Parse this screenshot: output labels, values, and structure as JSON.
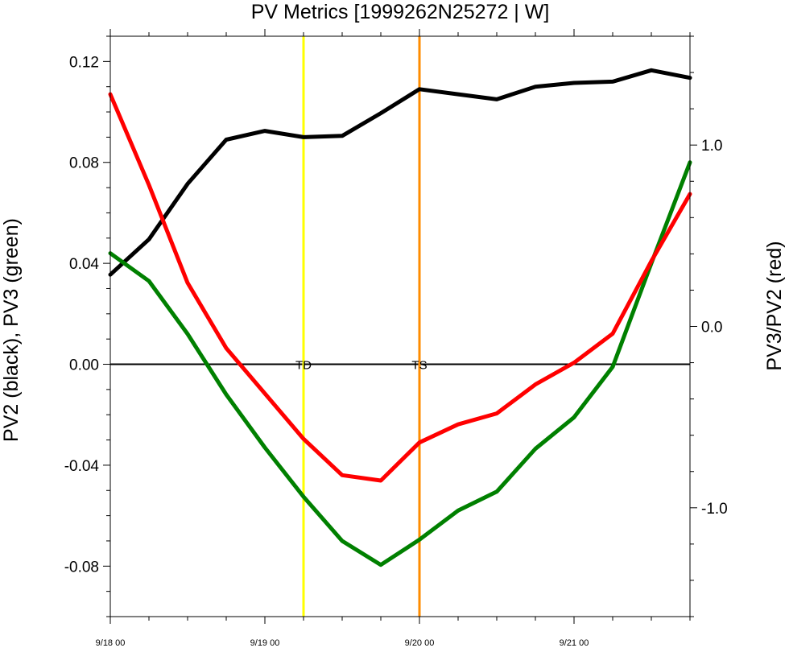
{
  "chart_data": {
    "type": "line",
    "title": "PV Metrics [1999262N25272 | W]",
    "ylabel_left": "PV2 (black), PV3 (green)",
    "ylabel_right": "PV3/PV2 (red)",
    "x_ticks": [
      "9/18 00",
      "9/19 00",
      "9/20 00",
      "9/21 00"
    ],
    "x_tick_positions": [
      0,
      4,
      8,
      12
    ],
    "xlim": [
      0,
      15
    ],
    "ylim_left": [
      -0.1,
      0.13
    ],
    "ylim_right": [
      -1.6,
      1.6
    ],
    "y_ticks_left": [
      0.12,
      0.08,
      0.04,
      0.0,
      -0.04,
      -0.08
    ],
    "y_tick_labels_left": [
      "0.12",
      "0.08",
      "0.04",
      "0.00",
      "-0.04",
      "-0.08"
    ],
    "y_ticks_right": [
      1.0,
      0.0,
      -1.0
    ],
    "y_tick_labels_right": [
      "1.0",
      "0.0",
      "-1.0"
    ],
    "zero_line": 0.0,
    "series": [
      {
        "axis": "left",
        "color": "#000000",
        "x": [
          0,
          1,
          2,
          3,
          4,
          5,
          6,
          7,
          8,
          9,
          10,
          11,
          12,
          13,
          14,
          15
        ],
        "values": [
          0.0355,
          0.0495,
          0.0715,
          0.089,
          0.0925,
          0.09,
          0.0905,
          0.0995,
          0.109,
          0.107,
          0.105,
          0.11,
          0.1115,
          0.112,
          0.1165,
          0.1135
        ]
      },
      {
        "axis": "left",
        "color": "#008000",
        "x": [
          0,
          1,
          2,
          3,
          4,
          5,
          6,
          7,
          8,
          9,
          10,
          11,
          12,
          13,
          14,
          15
        ],
        "values": [
          0.044,
          0.033,
          0.012,
          -0.012,
          -0.033,
          -0.0525,
          -0.07,
          -0.0795,
          -0.0695,
          -0.058,
          -0.0505,
          -0.0335,
          -0.021,
          -0.001,
          0.04,
          0.08
        ]
      },
      {
        "axis": "right",
        "color": "#ff0000",
        "x": [
          0,
          1,
          2,
          3,
          4,
          5,
          6,
          7,
          8,
          9,
          10,
          11,
          12,
          13,
          14,
          15
        ],
        "values": [
          1.28,
          0.78,
          0.24,
          -0.12,
          -0.37,
          -0.62,
          -0.82,
          -0.85,
          -0.64,
          -0.54,
          -0.48,
          -0.32,
          -0.2,
          -0.04,
          0.36,
          0.73
        ]
      }
    ],
    "vertical_markers": [
      {
        "x": 5,
        "label": "TD",
        "color": "#ffff00"
      },
      {
        "x": 8,
        "label": "TS",
        "color": "#ff8c00"
      }
    ],
    "grid": false,
    "legend": "none"
  }
}
